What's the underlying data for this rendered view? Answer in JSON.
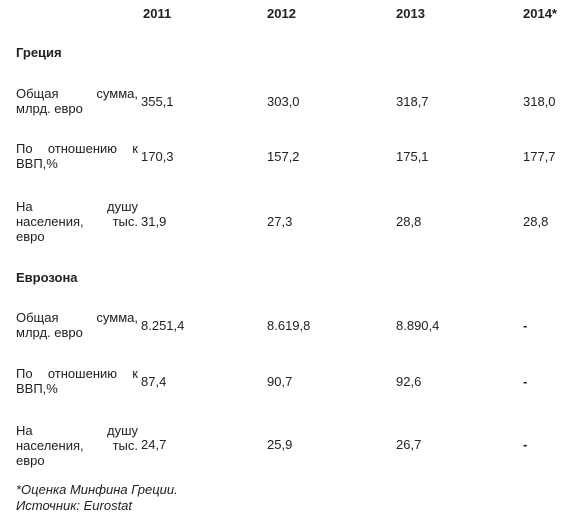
{
  "table": {
    "headers": [
      "2011",
      "2012",
      "2013",
      "2014*"
    ],
    "sections": [
      {
        "title": "Греция",
        "rows": [
          {
            "label": "Общая сумма, млрд. евро",
            "values": [
              "355,1",
              "303,0",
              "318,7",
              "318,0"
            ]
          },
          {
            "label": "По отношению к ВВП,%",
            "values": [
              "170,3",
              "157,2",
              "175,1",
              "177,7"
            ]
          },
          {
            "label": "На душу населения, тыс. евро",
            "values": [
              "31,9",
              "27,3",
              "28,8",
              "28,8"
            ]
          }
        ]
      },
      {
        "title": "Еврозона",
        "rows": [
          {
            "label": "Общая сумма, млрд. евро",
            "values": [
              "8.251,4",
              "8.619,8",
              "8.890,4",
              "-"
            ]
          },
          {
            "label": "По отношению к ВВП,%",
            "values": [
              "87,4",
              "90,7",
              "92,6",
              "-"
            ]
          },
          {
            "label": "На душу населения, тыс. евро",
            "values": [
              "24,7",
              "25,9",
              "26,7",
              "-"
            ]
          }
        ]
      }
    ]
  },
  "footnotes": {
    "estimate": "*Оценка Минфина Греции.",
    "source": "Источник: Eurostat"
  }
}
